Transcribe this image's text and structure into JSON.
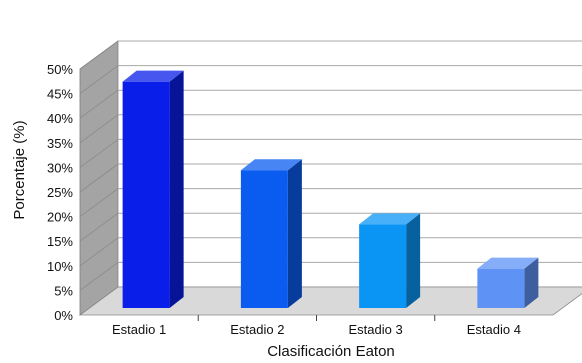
{
  "chart_data": {
    "type": "bar",
    "categories": [
      "Estadio 1",
      "Estadio 2",
      "Estadio 3",
      "Estadio 4"
    ],
    "values": [
      46,
      28,
      17,
      8
    ],
    "xlabel": "Clasificación Eaton",
    "ylabel": "Porcentaje (%)",
    "ylim": [
      0,
      50
    ],
    "yticks": [
      "0%",
      "5%",
      "10%",
      "15%",
      "20%",
      "25%",
      "30%",
      "35%",
      "40%",
      "45%",
      "50%"
    ],
    "grid": true,
    "style": "3d",
    "colors": [
      "#0a1eea",
      "#0a5cf0",
      "#0a95f5",
      "#5e92f5"
    ]
  }
}
